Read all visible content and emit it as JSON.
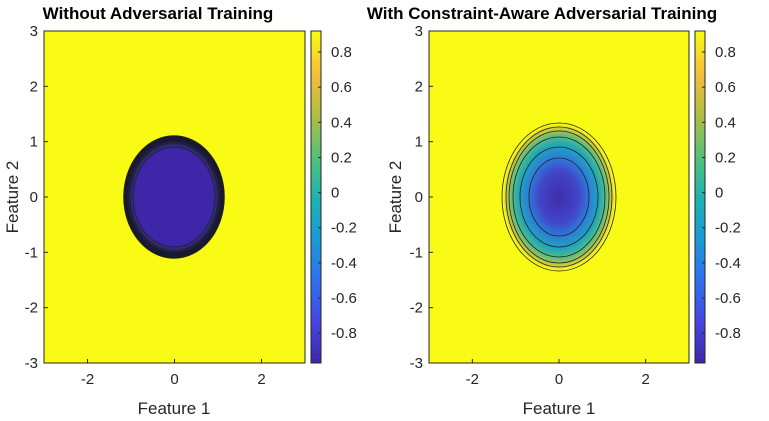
{
  "chart_data": [
    {
      "type": "heatmap",
      "title": "Without Adversarial Training",
      "xlabel": "Feature 1",
      "ylabel": "Feature 2",
      "xlim": [
        -3,
        3
      ],
      "ylim": [
        -3,
        3
      ],
      "xticks": [
        "-2",
        "0",
        "2"
      ],
      "yticks": [
        "3",
        "2",
        "1",
        "0",
        "-1",
        "-2",
        "-3"
      ],
      "colorbar_ticks": [
        "0.8",
        "0.6",
        "0.4",
        "0.2",
        "0",
        "-0.2",
        "-0.4",
        "-0.6",
        "-0.8"
      ],
      "colorbar_range": [
        -0.97,
        0.92
      ],
      "colormap": "parula",
      "contour_lines": true,
      "region_inside": {
        "shape": "ellipse",
        "center": [
          0,
          0
        ],
        "radius_x": 1.0,
        "radius_y": 1.05,
        "value": -0.95
      },
      "region_outside_value": 0.9,
      "transition": "sharp"
    },
    {
      "type": "heatmap",
      "title": "With Constraint-Aware Adversarial Training",
      "xlabel": "Feature 1",
      "ylabel": "Feature 2",
      "xlim": [
        -3,
        3
      ],
      "ylim": [
        -3,
        3
      ],
      "xticks": [
        "-2",
        "0",
        "2"
      ],
      "yticks": [
        "3",
        "2",
        "1",
        "0",
        "-1",
        "-2",
        "-3"
      ],
      "colorbar_ticks": [
        "0.8",
        "0.6",
        "0.4",
        "0.2",
        "0",
        "-0.2",
        "-0.4",
        "-0.6",
        "-0.8"
      ],
      "colorbar_range": [
        -0.97,
        0.92
      ],
      "colormap": "parula",
      "contour_lines": true,
      "region_inside": {
        "shape": "ellipse",
        "center": [
          0,
          0
        ],
        "radius_x": 1.0,
        "radius_y": 1.35,
        "value": -0.95
      },
      "region_outside_value": 0.9,
      "transition": "gradual"
    }
  ]
}
